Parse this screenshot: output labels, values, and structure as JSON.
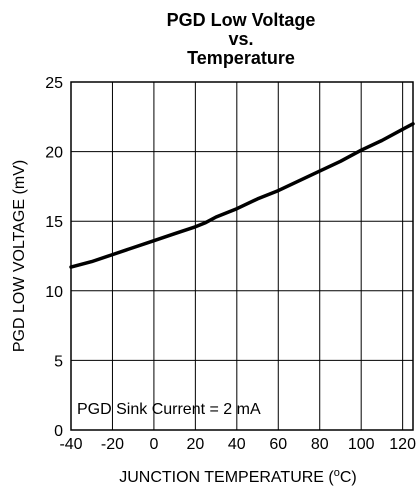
{
  "chart_data": {
    "type": "line",
    "title_lines": [
      "PGD Low Voltage",
      "vs.",
      "Temperature"
    ],
    "xlabel_main": "JUNCTION TEMPERATURE (",
    "xlabel_sup": "o",
    "xlabel_unit": "C)",
    "ylabel": "PGD LOW VOLTAGE (mV)",
    "xlim": [
      -40,
      125
    ],
    "ylim": [
      0,
      25
    ],
    "xticks": [
      -40,
      -20,
      0,
      20,
      40,
      60,
      80,
      100,
      120
    ],
    "yticks": [
      0,
      5,
      10,
      15,
      20,
      25
    ],
    "grid": true,
    "annotation": "PGD Sink Current = 2 mA",
    "series": [
      {
        "x": [
          -40,
          -30,
          -20,
          -10,
          0,
          10,
          20,
          25,
          30,
          40,
          50,
          60,
          70,
          80,
          90,
          100,
          110,
          120,
          125
        ],
        "y": [
          11.7,
          12.1,
          12.6,
          13.1,
          13.6,
          14.1,
          14.6,
          14.9,
          15.3,
          15.9,
          16.6,
          17.2,
          17.9,
          18.6,
          19.3,
          20.1,
          20.8,
          21.6,
          22.0
        ]
      }
    ]
  }
}
